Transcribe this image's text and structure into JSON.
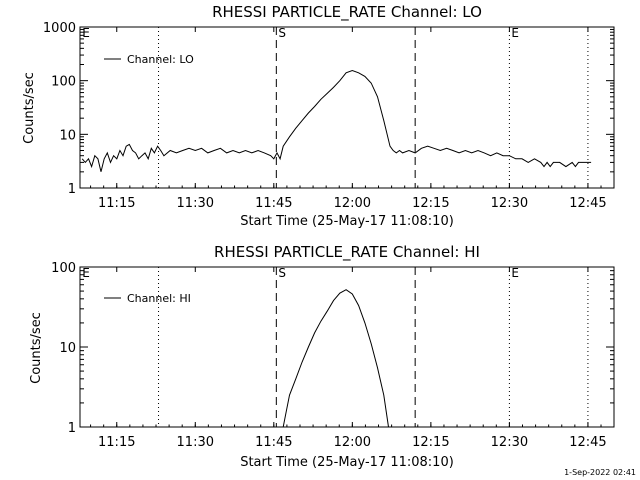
{
  "footer_timestamp": "1-Sep-2022 02:41",
  "chart_data": [
    {
      "type": "line",
      "title": "RHESSI PARTICLE_RATE Channel: LO",
      "xlabel": "Start Time (25-May-17 11:08:10)",
      "ylabel": "Counts/sec",
      "yscale": "log",
      "ylim": [
        1,
        1000
      ],
      "xlim_minutes": [
        11.133,
        12.833
      ],
      "x_tick_labels": [
        "11:15",
        "11:30",
        "11:45",
        "12:00",
        "12:15",
        "12:30",
        "12:45"
      ],
      "x_ticks_hours": [
        11.25,
        11.5,
        11.75,
        12.0,
        12.25,
        12.5,
        12.75
      ],
      "y_tick_labels": [
        "1",
        "10",
        "100",
        "1000"
      ],
      "y_ticks": [
        1,
        10,
        100,
        1000
      ],
      "legend": {
        "label": "Channel: LO",
        "position": "top-left"
      },
      "vlines": [
        {
          "x": 11.383,
          "style": "dotted"
        },
        {
          "x": 11.758,
          "style": "dashed",
          "label": "S"
        },
        {
          "x": 12.2,
          "style": "dashed"
        },
        {
          "x": 12.5,
          "style": "dotted",
          "label": "E"
        },
        {
          "x": 12.75,
          "style": "dotted"
        }
      ],
      "corner_labels": [
        {
          "x": 11.14,
          "label": "E"
        }
      ],
      "series": [
        {
          "name": "Channel: LO",
          "x": [
            11.14,
            11.15,
            11.16,
            11.17,
            11.18,
            11.19,
            11.2,
            11.21,
            11.22,
            11.23,
            11.24,
            11.25,
            11.26,
            11.27,
            11.28,
            11.29,
            11.3,
            11.31,
            11.32,
            11.33,
            11.34,
            11.35,
            11.36,
            11.37,
            11.38,
            11.39,
            11.4,
            11.42,
            11.44,
            11.46,
            11.48,
            11.5,
            11.52,
            11.54,
            11.56,
            11.58,
            11.6,
            11.62,
            11.64,
            11.66,
            11.68,
            11.7,
            11.72,
            11.74,
            11.75,
            11.76,
            11.77,
            11.78,
            11.8,
            11.82,
            11.84,
            11.86,
            11.88,
            11.9,
            11.92,
            11.94,
            11.96,
            11.98,
            12.0,
            12.02,
            12.04,
            12.06,
            12.08,
            12.1,
            12.12,
            12.13,
            12.14,
            12.15,
            12.16,
            12.18,
            12.2,
            12.22,
            12.24,
            12.26,
            12.28,
            12.3,
            12.32,
            12.34,
            12.36,
            12.38,
            12.4,
            12.42,
            12.44,
            12.46,
            12.48,
            12.5,
            12.52,
            12.54,
            12.56,
            12.58,
            12.6,
            12.61,
            12.62,
            12.63,
            12.64,
            12.66,
            12.68,
            12.7,
            12.71,
            12.72,
            12.74,
            12.76
          ],
          "y": [
            3.5,
            3.0,
            3.5,
            2.5,
            4.0,
            3.5,
            2.0,
            3.5,
            4.5,
            3.0,
            4.0,
            3.5,
            5.0,
            4.0,
            6.0,
            6.5,
            5.0,
            4.5,
            3.5,
            4.0,
            4.5,
            3.5,
            5.5,
            4.5,
            6.0,
            5.0,
            4.0,
            5.0,
            4.5,
            5.0,
            5.5,
            5.0,
            5.5,
            4.5,
            5.0,
            5.5,
            4.5,
            5.0,
            4.5,
            5.0,
            4.5,
            5.0,
            4.5,
            4.0,
            3.5,
            4.5,
            3.5,
            6.0,
            9.0,
            13.0,
            18.0,
            25.0,
            33.0,
            45.0,
            58.0,
            75.0,
            100.0,
            140.0,
            155.0,
            140.0,
            120.0,
            90.0,
            50.0,
            18.0,
            6.0,
            5.0,
            4.5,
            5.0,
            4.5,
            5.0,
            4.5,
            5.5,
            6.0,
            5.5,
            5.0,
            5.5,
            5.0,
            4.5,
            5.0,
            4.5,
            5.0,
            4.5,
            4.0,
            4.5,
            4.0,
            4.0,
            3.5,
            3.5,
            3.0,
            3.5,
            3.0,
            2.5,
            3.0,
            2.5,
            3.0,
            3.0,
            2.5,
            3.0,
            2.5,
            3.0,
            3.0,
            3.0
          ]
        }
      ]
    },
    {
      "type": "line",
      "title": "RHESSI PARTICLE_RATE Channel: HI",
      "xlabel": "Start Time (25-May-17 11:08:10)",
      "ylabel": "Counts/sec",
      "yscale": "log",
      "ylim": [
        1,
        100
      ],
      "x_tick_labels": [
        "11:15",
        "11:30",
        "11:45",
        "12:00",
        "12:15",
        "12:30",
        "12:45"
      ],
      "x_ticks_hours": [
        11.25,
        11.5,
        11.75,
        12.0,
        12.25,
        12.5,
        12.75
      ],
      "y_tick_labels": [
        "1",
        "10",
        "100"
      ],
      "y_ticks": [
        1,
        10,
        100
      ],
      "legend": {
        "label": "Channel: HI",
        "position": "top-left"
      },
      "vlines": [
        {
          "x": 11.383,
          "style": "dotted"
        },
        {
          "x": 11.758,
          "style": "dashed",
          "label": "S"
        },
        {
          "x": 12.2,
          "style": "dashed"
        },
        {
          "x": 12.5,
          "style": "dotted",
          "label": "E"
        },
        {
          "x": 12.75,
          "style": "dotted"
        }
      ],
      "corner_labels": [
        {
          "x": 11.14,
          "label": "E"
        }
      ],
      "series": [
        {
          "name": "Channel: HI",
          "x": [
            11.78,
            11.79,
            11.8,
            11.82,
            11.84,
            11.86,
            11.88,
            11.9,
            11.92,
            11.94,
            11.96,
            11.98,
            12.0,
            12.02,
            12.04,
            12.06,
            12.08,
            12.1,
            12.115
          ],
          "y": [
            1.0,
            1.6,
            2.5,
            4.0,
            6.5,
            10.0,
            15.0,
            21.0,
            28.0,
            38.0,
            47.0,
            52.0,
            46.0,
            33.0,
            20.0,
            11.0,
            5.5,
            2.5,
            1.0
          ]
        }
      ]
    }
  ]
}
